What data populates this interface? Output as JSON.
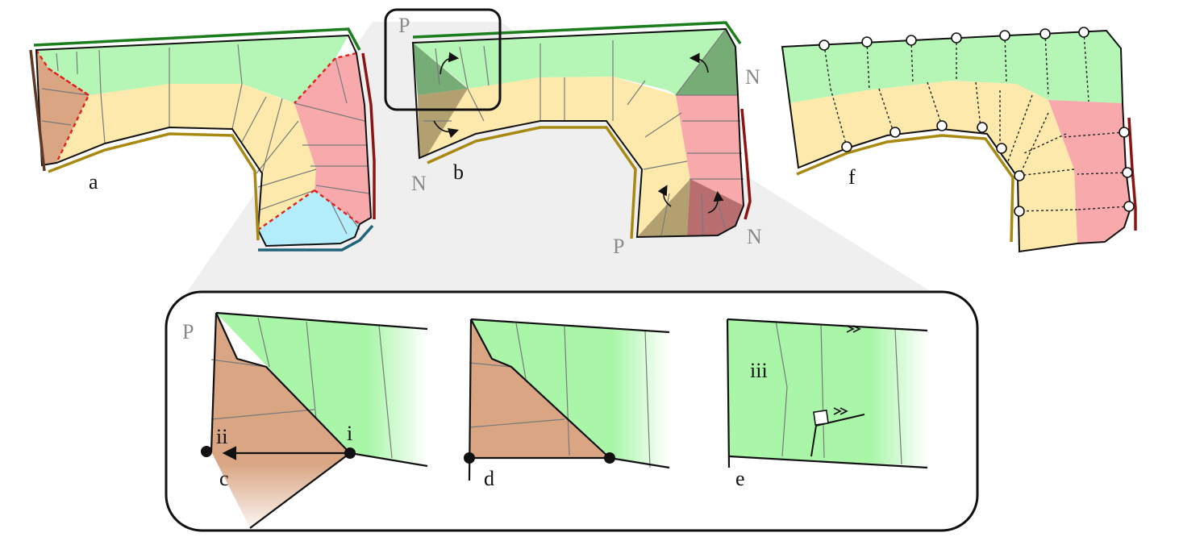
{
  "colors": {
    "green_region": "#b5f5b5",
    "yellow_region": "#fde9ab",
    "red_region": "#f7a9ab",
    "brown_region": "#d9a583",
    "blue_region": "#b3ecfb",
    "green_boundary": "#1b7d1b",
    "olive_boundary": "#a88a12",
    "darkred_boundary": "#8e1414",
    "brown_boundary": "#5e3a24",
    "blue_boundary": "#1f6478",
    "dashed_red": "#e3201b",
    "inset_background": "#eeeeee"
  },
  "labels": {
    "a": "a",
    "b": "b",
    "c": "c",
    "d": "d",
    "e": "e",
    "f": "f",
    "P": "P",
    "N": "N",
    "i": "i",
    "ii": "ii",
    "iii": "iii"
  }
}
